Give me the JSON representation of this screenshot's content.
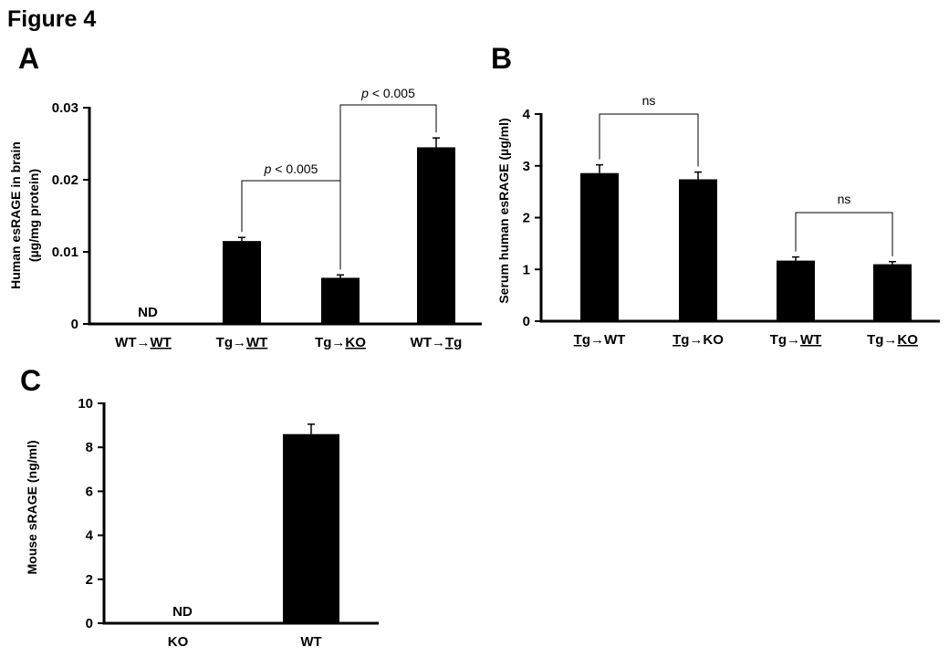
{
  "figure": {
    "title": "Figure 4"
  },
  "chart_data": [
    {
      "panel": "A",
      "type": "bar",
      "ylabel": "Human esRAGE in brain",
      "ylabel2": "(µg/mg protein)",
      "ylim": [
        0,
        0.03
      ],
      "yticks": [
        "0",
        "0.01",
        "0.02",
        "0.03"
      ],
      "ytick_values": [
        0,
        0.01,
        0.02,
        0.03
      ],
      "categories": [
        {
          "parts": [
            {
              "t": "WT→",
              "u": false
            },
            {
              "t": "WT",
              "u": true
            }
          ]
        },
        {
          "parts": [
            {
              "t": "Tg→",
              "u": false
            },
            {
              "t": "WT",
              "u": true
            }
          ]
        },
        {
          "parts": [
            {
              "t": "Tg→",
              "u": false
            },
            {
              "t": "KO",
              "u": true
            }
          ]
        },
        {
          "parts": [
            {
              "t": "WT→",
              "u": false
            },
            {
              "t": "Tg",
              "u": true
            }
          ]
        }
      ],
      "values": [
        null,
        0.0115,
        0.0064,
        0.0245
      ],
      "errors": [
        null,
        0.0005,
        0.0004,
        0.0013
      ],
      "bar_labels": [
        "ND",
        "",
        "",
        ""
      ],
      "comparisons": [
        {
          "from": 1,
          "to": 2,
          "italic": "p",
          "text": " < 0.005"
        },
        {
          "from": 2,
          "to": 3,
          "italic": "p",
          "text": " < 0.005"
        }
      ]
    },
    {
      "panel": "B",
      "type": "bar",
      "ylabel": "Serum human esRAGE (µg/ml)",
      "ylim": [
        0,
        4
      ],
      "yticks": [
        "0",
        "1",
        "2",
        "3",
        "4"
      ],
      "ytick_values": [
        0,
        1,
        2,
        3,
        4
      ],
      "categories": [
        {
          "parts": [
            {
              "t": "Tg",
              "u": true
            },
            {
              "t": "→WT",
              "u": false
            }
          ]
        },
        {
          "parts": [
            {
              "t": "Tg",
              "u": true
            },
            {
              "t": "→KO",
              "u": false
            }
          ]
        },
        {
          "parts": [
            {
              "t": "Tg→",
              "u": false
            },
            {
              "t": "WT",
              "u": true
            }
          ]
        },
        {
          "parts": [
            {
              "t": "Tg→",
              "u": false
            },
            {
              "t": "KO",
              "u": true
            }
          ]
        }
      ],
      "values": [
        2.86,
        2.74,
        1.17,
        1.1
      ],
      "errors": [
        0.16,
        0.14,
        0.07,
        0.05
      ],
      "bar_labels": [
        "",
        "",
        "",
        ""
      ],
      "comparisons": [
        {
          "from": 0,
          "to": 1,
          "italic": "",
          "text": "ns"
        },
        {
          "from": 2,
          "to": 3,
          "italic": "",
          "text": "ns"
        }
      ]
    },
    {
      "panel": "C",
      "type": "bar",
      "ylabel": "Mouse sRAGE  (ng/ml)",
      "ylim": [
        0,
        10
      ],
      "yticks": [
        "0",
        "2",
        "4",
        "6",
        "8",
        "10"
      ],
      "ytick_values": [
        0,
        2,
        4,
        6,
        8,
        10
      ],
      "categories": [
        {
          "parts": [
            {
              "t": "KO",
              "u": false
            }
          ]
        },
        {
          "parts": [
            {
              "t": "WT",
              "u": false
            }
          ]
        }
      ],
      "values": [
        null,
        8.6
      ],
      "errors": [
        null,
        0.45
      ],
      "bar_labels": [
        "ND",
        ""
      ],
      "comparisons": []
    }
  ]
}
